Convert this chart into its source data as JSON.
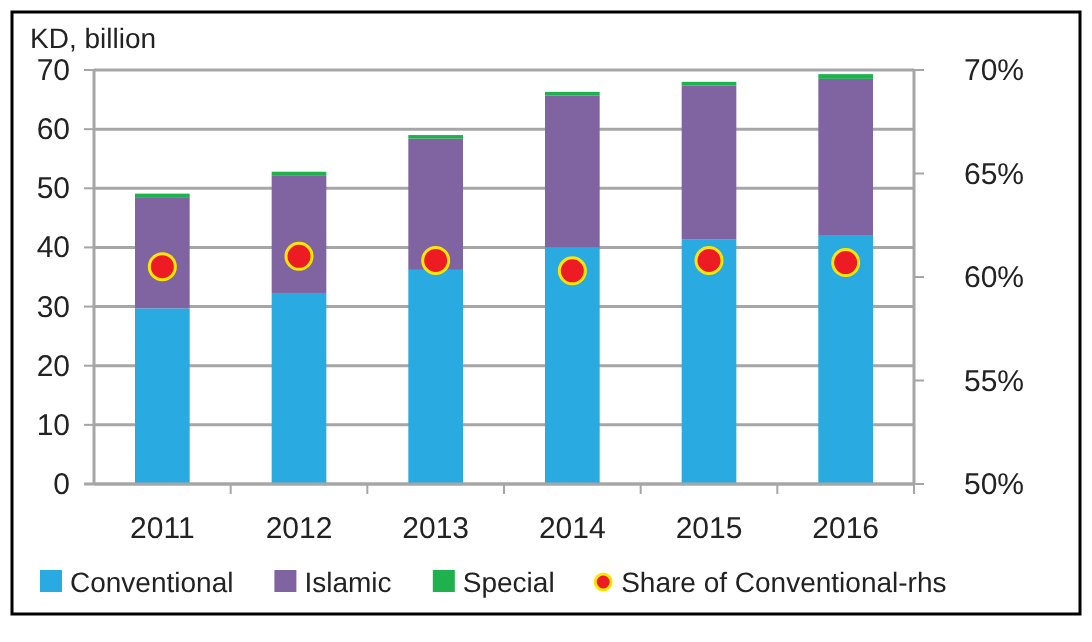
{
  "chart_data": {
    "type": "bar",
    "stacked": true,
    "ylabel": "KD, billion",
    "categories": [
      "2011",
      "2012",
      "2013",
      "2014",
      "2015",
      "2016"
    ],
    "series": [
      {
        "name": "Conventional",
        "color": "#29abe2",
        "values": [
          29.7,
          32.3,
          36.2,
          40,
          41.4,
          42.1
        ]
      },
      {
        "name": "Islamic",
        "color": "#8064a2",
        "values": [
          18.8,
          19.8,
          22.2,
          25.7,
          26,
          26.4
        ]
      },
      {
        "name": "Special",
        "color": "#1fb14e",
        "values": [
          0.6,
          0.7,
          0.6,
          0.6,
          0.6,
          0.8
        ]
      },
      {
        "name": "Share of Conventional-rhs",
        "type": "scatter",
        "axis": "y2",
        "marker": "circle",
        "color": "#ed1c24",
        "values": [
          60.5,
          61,
          60.8,
          60.3,
          60.8,
          60.7
        ]
      }
    ],
    "ylim": [
      0,
      70
    ],
    "yticks": [
      0,
      10,
      20,
      30,
      40,
      50,
      60,
      70
    ],
    "y2lim": [
      50,
      70
    ],
    "y2ticks": [
      {
        "value": 50,
        "label": "50%"
      },
      {
        "value": 55,
        "label": "55%"
      },
      {
        "value": 60,
        "label": "60%"
      },
      {
        "value": 65,
        "label": "65%"
      },
      {
        "value": 70,
        "label": "70%"
      }
    ],
    "grid": "y",
    "legend": "bottom"
  }
}
